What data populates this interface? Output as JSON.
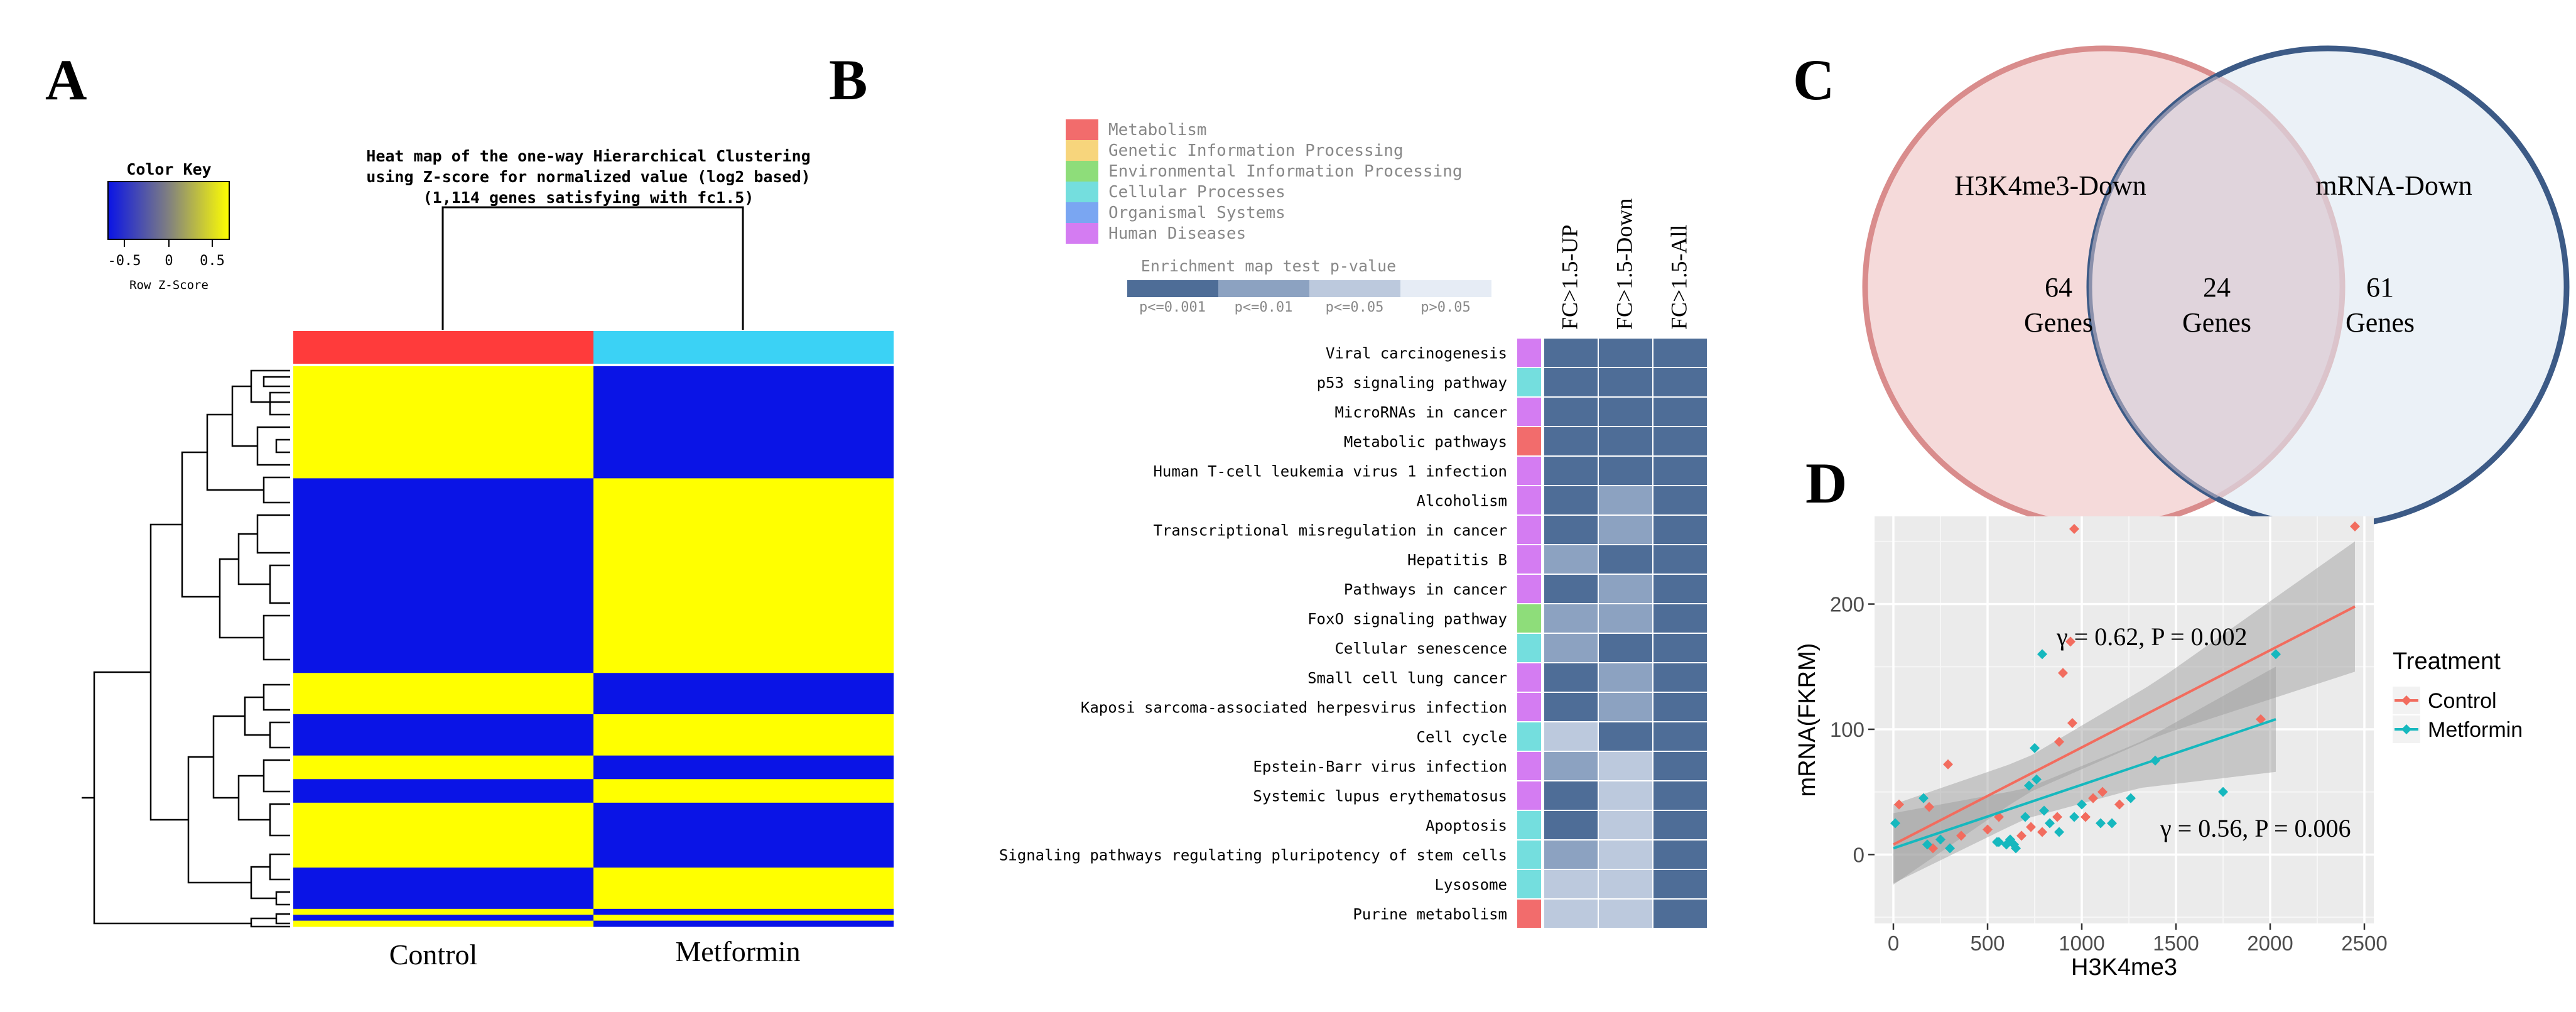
{
  "colors": {
    "heat_low": "#0a14e6",
    "heat_high": "#ffff00",
    "control_bar": "#ff3b3b",
    "metformin_bar": "#3bd2f5",
    "control_line": "#f26c5e",
    "metformin_line": "#16b8be",
    "venn_left": "#f5dada",
    "venn_left_stroke": "#d98c8c",
    "venn_right": "#dde7f1",
    "venn_right_stroke": "#3c5a86",
    "pv1": "#4e6d97",
    "pv2": "#8ca2c1",
    "pv3": "#bcc9dd",
    "pv4": "#e6ecf5"
  },
  "panelA": {
    "label": "A",
    "color_key_title": "Color Key",
    "color_key_ticks": [
      "-0.5",
      "0",
      "0.5"
    ],
    "color_key_label": "Row Z-Score",
    "title_lines": [
      "Heat map of the one-way Hierarchical Clustering",
      "using Z-score for normalized value (log2 based)",
      "(1,114 genes satisfying with fc1.5)"
    ],
    "col_labels": [
      "Control",
      "Metformin"
    ]
  },
  "panelB": {
    "label": "B",
    "legend": [
      {
        "name": "Metabolism",
        "color": "#f26c6c"
      },
      {
        "name": "Genetic Information Processing",
        "color": "#f7d57c"
      },
      {
        "name": "Environmental Information Processing",
        "color": "#8edd7a"
      },
      {
        "name": "Cellular Processes",
        "color": "#74dede"
      },
      {
        "name": "Organismal Systems",
        "color": "#7aa6f2"
      },
      {
        "name": "Human Diseases",
        "color": "#d47cf2"
      }
    ],
    "pvalue_title": "Enrichment map test p-value",
    "pvalue_labels": [
      "p<=0.001",
      "p<=0.01",
      "p<=0.05",
      "p>0.05"
    ],
    "columns": [
      "FC>1.5-UP",
      "FC>1.5-Down",
      "FC>1.5-All"
    ]
  },
  "panelC": {
    "label": "C",
    "left_set": "H3K4me3-Down",
    "right_set": "mRNA-Down",
    "left_only": "64",
    "overlap": "24",
    "right_only": "61",
    "genes_word": "Genes"
  },
  "panelD": {
    "label": "D",
    "annotation_control": "γ = 0.62, P = 0.002",
    "annotation_metformin": "γ = 0.56, P = 0.006"
  },
  "chart_data": [
    {
      "type": "heatmap",
      "title": "Heat map of the one-way Hierarchical Clustering using Z-score for normalized value (log2 based) (1,114 genes satisfying with fc1.5)",
      "columns": [
        "Control",
        "Metformin"
      ],
      "color_scale": {
        "min": -0.5,
        "max": 0.5,
        "low": "blue",
        "high": "yellow",
        "label": "Row Z-Score"
      },
      "row_blocks": [
        {
          "weight": 19,
          "control": "high",
          "metformin": "low"
        },
        {
          "weight": 33,
          "control": "low",
          "metformin": "high"
        },
        {
          "weight": 7,
          "control": "high",
          "metformin": "low"
        },
        {
          "weight": 7,
          "control": "low",
          "metformin": "high"
        },
        {
          "weight": 4,
          "control": "high",
          "metformin": "low"
        },
        {
          "weight": 4,
          "control": "low",
          "metformin": "high"
        },
        {
          "weight": 11,
          "control": "high",
          "metformin": "low"
        },
        {
          "weight": 7,
          "control": "low",
          "metformin": "high"
        },
        {
          "weight": 1,
          "control": "high",
          "metformin": "low"
        },
        {
          "weight": 1,
          "control": "low",
          "metformin": "high"
        },
        {
          "weight": 1,
          "control": "high",
          "metformin": "low"
        }
      ]
    },
    {
      "type": "heatmap",
      "title": "Enrichment map test p-value",
      "columns": [
        "FC>1.5-UP",
        "FC>1.5-Down",
        "FC>1.5-All"
      ],
      "levels": [
        "p<=0.001",
        "p<=0.01",
        "p<=0.05",
        "p>0.05"
      ],
      "rows": [
        {
          "name": "Viral carcinogenesis",
          "category": "Human Diseases",
          "values": [
            "p<=0.001",
            "p<=0.001",
            "p<=0.001"
          ]
        },
        {
          "name": "p53 signaling pathway",
          "category": "Cellular Processes",
          "values": [
            "p<=0.001",
            "p<=0.001",
            "p<=0.001"
          ]
        },
        {
          "name": "MicroRNAs in cancer",
          "category": "Human Diseases",
          "values": [
            "p<=0.001",
            "p<=0.001",
            "p<=0.001"
          ]
        },
        {
          "name": "Metabolic pathways",
          "category": "Metabolism",
          "values": [
            "p<=0.001",
            "p<=0.001",
            "p<=0.001"
          ]
        },
        {
          "name": "Human T-cell leukemia virus 1 infection",
          "category": "Human Diseases",
          "values": [
            "p<=0.001",
            "p<=0.001",
            "p<=0.001"
          ]
        },
        {
          "name": "Alcoholism",
          "category": "Human Diseases",
          "values": [
            "p<=0.001",
            "p<=0.01",
            "p<=0.001"
          ]
        },
        {
          "name": "Transcriptional misregulation in cancer",
          "category": "Human Diseases",
          "values": [
            "p<=0.001",
            "p<=0.01",
            "p<=0.001"
          ]
        },
        {
          "name": "Hepatitis B",
          "category": "Human Diseases",
          "values": [
            "p<=0.01",
            "p<=0.001",
            "p<=0.001"
          ]
        },
        {
          "name": "Pathways in cancer",
          "category": "Human Diseases",
          "values": [
            "p<=0.001",
            "p<=0.01",
            "p<=0.001"
          ]
        },
        {
          "name": "FoxO signaling pathway",
          "category": "Environmental Information Processing",
          "values": [
            "p<=0.01",
            "p<=0.01",
            "p<=0.001"
          ]
        },
        {
          "name": "Cellular senescence",
          "category": "Cellular Processes",
          "values": [
            "p<=0.01",
            "p<=0.001",
            "p<=0.001"
          ]
        },
        {
          "name": "Small cell lung cancer",
          "category": "Human Diseases",
          "values": [
            "p<=0.001",
            "p<=0.01",
            "p<=0.001"
          ]
        },
        {
          "name": "Kaposi sarcoma-associated herpesvirus infection",
          "category": "Human Diseases",
          "values": [
            "p<=0.001",
            "p<=0.01",
            "p<=0.001"
          ]
        },
        {
          "name": "Cell cycle",
          "category": "Cellular Processes",
          "values": [
            "p<=0.05",
            "p<=0.001",
            "p<=0.001"
          ]
        },
        {
          "name": "Epstein-Barr virus infection",
          "category": "Human Diseases",
          "values": [
            "p<=0.01",
            "p<=0.05",
            "p<=0.001"
          ]
        },
        {
          "name": "Systemic lupus erythematosus",
          "category": "Human Diseases",
          "values": [
            "p<=0.001",
            "p<=0.05",
            "p<=0.001"
          ]
        },
        {
          "name": "Apoptosis",
          "category": "Cellular Processes",
          "values": [
            "p<=0.001",
            "p<=0.05",
            "p<=0.001"
          ]
        },
        {
          "name": "Signaling pathways regulating pluripotency of stem cells",
          "category": "Cellular Processes",
          "values": [
            "p<=0.01",
            "p<=0.05",
            "p<=0.001"
          ]
        },
        {
          "name": "Lysosome",
          "category": "Cellular Processes",
          "values": [
            "p<=0.05",
            "p<=0.05",
            "p<=0.001"
          ]
        },
        {
          "name": "Purine metabolism",
          "category": "Metabolism",
          "values": [
            "p<=0.05",
            "p<=0.05",
            "p<=0.001"
          ]
        }
      ]
    },
    {
      "type": "venn",
      "sets": [
        "H3K4me3-Down",
        "mRNA-Down"
      ],
      "left_only": 64,
      "overlap": 24,
      "right_only": 61
    },
    {
      "type": "scatter",
      "xlabel": "H3K4me3",
      "ylabel": "mRNA(FKRM)",
      "xlim": [
        -100,
        2550
      ],
      "ylim": [
        -55,
        270
      ],
      "xticks": [
        "0",
        "500",
        "1000",
        "1500",
        "2000",
        "2500"
      ],
      "yticks": [
        "0",
        "100",
        "200"
      ],
      "grid": true,
      "legend_title": "Treatment",
      "legend_position": "right",
      "series": [
        {
          "name": "Control",
          "color": "#f26c5e",
          "fit": {
            "x": [
              0,
              2450
            ],
            "y": [
              8,
              198
            ]
          },
          "band_halfwidth": {
            "x": [
              0,
              700,
              1400,
              2450
            ],
            "y": [
              32,
              14,
              22,
              52
            ]
          },
          "points": [
            [
              30,
              40
            ],
            [
              190,
              38
            ],
            [
              210,
              5
            ],
            [
              290,
              72
            ],
            [
              360,
              15
            ],
            [
              500,
              20
            ],
            [
              560,
              30
            ],
            [
              680,
              15
            ],
            [
              730,
              22
            ],
            [
              790,
              18
            ],
            [
              870,
              30
            ],
            [
              880,
              90
            ],
            [
              900,
              145
            ],
            [
              940,
              170
            ],
            [
              950,
              105
            ],
            [
              960,
              260
            ],
            [
              1020,
              30
            ],
            [
              1060,
              45
            ],
            [
              1110,
              50
            ],
            [
              1200,
              40
            ],
            [
              1950,
              108
            ],
            [
              2450,
              262
            ]
          ]
        },
        {
          "name": "Metformin",
          "color": "#16b8be",
          "fit": {
            "x": [
              0,
              2030
            ],
            "y": [
              5,
              108
            ]
          },
          "band_halfwidth": {
            "x": [
              0,
              700,
              1300,
              2030
            ],
            "y": [
              28,
              12,
              18,
              42
            ]
          },
          "points": [
            [
              10,
              25
            ],
            [
              160,
              45
            ],
            [
              180,
              8
            ],
            [
              250,
              12
            ],
            [
              300,
              5
            ],
            [
              550,
              10
            ],
            [
              560,
              10
            ],
            [
              600,
              8
            ],
            [
              620,
              12
            ],
            [
              640,
              8
            ],
            [
              650,
              5
            ],
            [
              700,
              30
            ],
            [
              720,
              55
            ],
            [
              750,
              85
            ],
            [
              760,
              60
            ],
            [
              790,
              160
            ],
            [
              800,
              35
            ],
            [
              830,
              25
            ],
            [
              880,
              18
            ],
            [
              960,
              30
            ],
            [
              1000,
              40
            ],
            [
              1100,
              25
            ],
            [
              1160,
              25
            ],
            [
              1260,
              45
            ],
            [
              1390,
              75
            ],
            [
              1750,
              50
            ],
            [
              2030,
              160
            ]
          ]
        }
      ]
    }
  ]
}
